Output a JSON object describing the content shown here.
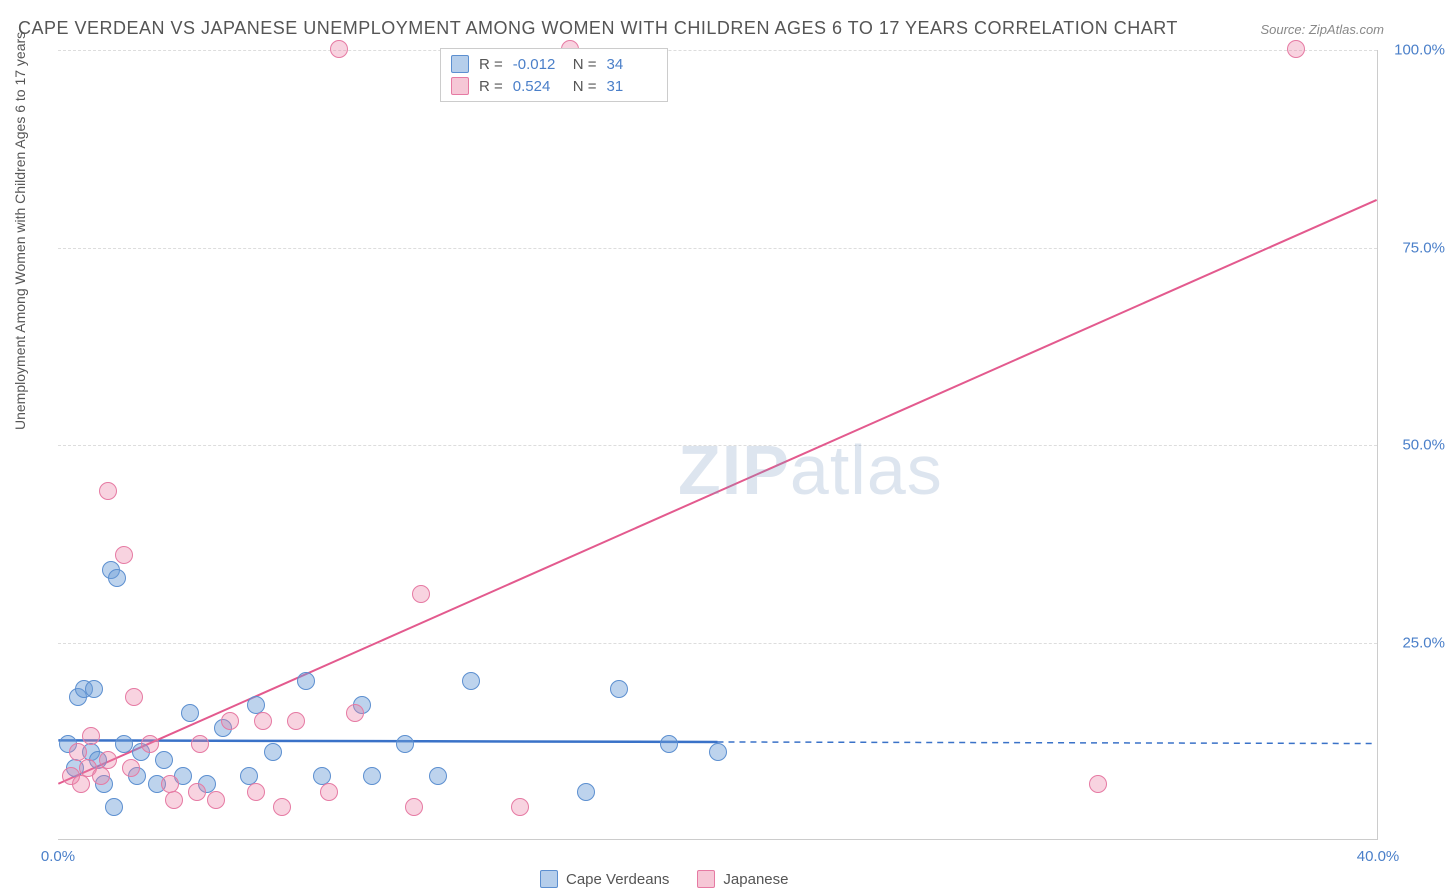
{
  "title": "CAPE VERDEAN VS JAPANESE UNEMPLOYMENT AMONG WOMEN WITH CHILDREN AGES 6 TO 17 YEARS CORRELATION CHART",
  "source": "Source: ZipAtlas.com",
  "ylabel": "Unemployment Among Women with Children Ages 6 to 17 years",
  "chart": {
    "type": "scatter",
    "xlim": [
      0,
      40
    ],
    "ylim": [
      0,
      100
    ],
    "yticks": [
      25,
      50,
      75,
      100
    ],
    "ytick_labels": [
      "25.0%",
      "50.0%",
      "75.0%",
      "100.0%"
    ],
    "xticks": [
      0,
      40
    ],
    "xtick_labels": [
      "0.0%",
      "40.0%"
    ],
    "grid_color": "#dddddd",
    "background_color": "#ffffff",
    "axis_color": "#cccccc",
    "tick_label_color": "#4a7fc9"
  },
  "series": [
    {
      "key": "cape_verdeans",
      "label": "Cape Verdeans",
      "color_fill": "rgba(108,157,216,0.45)",
      "color_stroke": "#5c8fd0",
      "marker_radius": 9,
      "R": "-0.012",
      "N": "34",
      "trend": {
        "x1": 0,
        "y1": 12.5,
        "x2": 20,
        "y2": 12.3,
        "extend_x": 40,
        "color": "#3a72c8",
        "width": 2.5
      },
      "points": [
        {
          "x": 0.3,
          "y": 12
        },
        {
          "x": 0.5,
          "y": 9
        },
        {
          "x": 0.6,
          "y": 18
        },
        {
          "x": 0.8,
          "y": 19
        },
        {
          "x": 1.0,
          "y": 11
        },
        {
          "x": 1.1,
          "y": 19
        },
        {
          "x": 1.2,
          "y": 10
        },
        {
          "x": 1.4,
          "y": 7
        },
        {
          "x": 1.6,
          "y": 34
        },
        {
          "x": 1.8,
          "y": 33
        },
        {
          "x": 1.7,
          "y": 4
        },
        {
          "x": 2.0,
          "y": 12
        },
        {
          "x": 2.4,
          "y": 8
        },
        {
          "x": 2.5,
          "y": 11
        },
        {
          "x": 3.0,
          "y": 7
        },
        {
          "x": 3.2,
          "y": 10
        },
        {
          "x": 3.8,
          "y": 8
        },
        {
          "x": 4.0,
          "y": 16
        },
        {
          "x": 4.5,
          "y": 7
        },
        {
          "x": 5.0,
          "y": 14
        },
        {
          "x": 5.8,
          "y": 8
        },
        {
          "x": 6.0,
          "y": 17
        },
        {
          "x": 6.5,
          "y": 11
        },
        {
          "x": 7.5,
          "y": 20
        },
        {
          "x": 8.0,
          "y": 8
        },
        {
          "x": 9.2,
          "y": 17
        },
        {
          "x": 9.5,
          "y": 8
        },
        {
          "x": 10.5,
          "y": 12
        },
        {
          "x": 11.5,
          "y": 8
        },
        {
          "x": 12.5,
          "y": 20
        },
        {
          "x": 16.0,
          "y": 6
        },
        {
          "x": 17.0,
          "y": 19
        },
        {
          "x": 18.5,
          "y": 12
        },
        {
          "x": 20.0,
          "y": 11
        }
      ]
    },
    {
      "key": "japanese",
      "label": "Japanese",
      "color_fill": "rgba(235,130,165,0.35)",
      "color_stroke": "#e67aa3",
      "marker_radius": 9,
      "R": "0.524",
      "N": "31",
      "trend": {
        "x1": 0,
        "y1": 7,
        "x2": 40,
        "y2": 81,
        "color": "#e35a8e",
        "width": 2
      },
      "points": [
        {
          "x": 0.4,
          "y": 8
        },
        {
          "x": 0.6,
          "y": 11
        },
        {
          "x": 0.7,
          "y": 7
        },
        {
          "x": 0.9,
          "y": 9
        },
        {
          "x": 1.0,
          "y": 13
        },
        {
          "x": 1.3,
          "y": 8
        },
        {
          "x": 1.5,
          "y": 10
        },
        {
          "x": 1.5,
          "y": 44
        },
        {
          "x": 2.0,
          "y": 36
        },
        {
          "x": 2.2,
          "y": 9
        },
        {
          "x": 2.3,
          "y": 18
        },
        {
          "x": 2.8,
          "y": 12
        },
        {
          "x": 3.4,
          "y": 7
        },
        {
          "x": 3.5,
          "y": 5
        },
        {
          "x": 4.2,
          "y": 6
        },
        {
          "x": 4.3,
          "y": 12
        },
        {
          "x": 4.8,
          "y": 5
        },
        {
          "x": 5.2,
          "y": 15
        },
        {
          "x": 6.0,
          "y": 6
        },
        {
          "x": 6.2,
          "y": 15
        },
        {
          "x": 6.8,
          "y": 4
        },
        {
          "x": 7.2,
          "y": 15
        },
        {
          "x": 8.2,
          "y": 6
        },
        {
          "x": 8.5,
          "y": 100
        },
        {
          "x": 9.0,
          "y": 16
        },
        {
          "x": 10.8,
          "y": 4
        },
        {
          "x": 11.0,
          "y": 31
        },
        {
          "x": 14.0,
          "y": 4
        },
        {
          "x": 15.5,
          "y": 100
        },
        {
          "x": 31.5,
          "y": 7
        },
        {
          "x": 37.5,
          "y": 100
        }
      ]
    }
  ],
  "legend_top": {
    "R_label": "R =",
    "N_label": "N ="
  },
  "watermark": {
    "bold": "ZIP",
    "rest": "atlas"
  }
}
